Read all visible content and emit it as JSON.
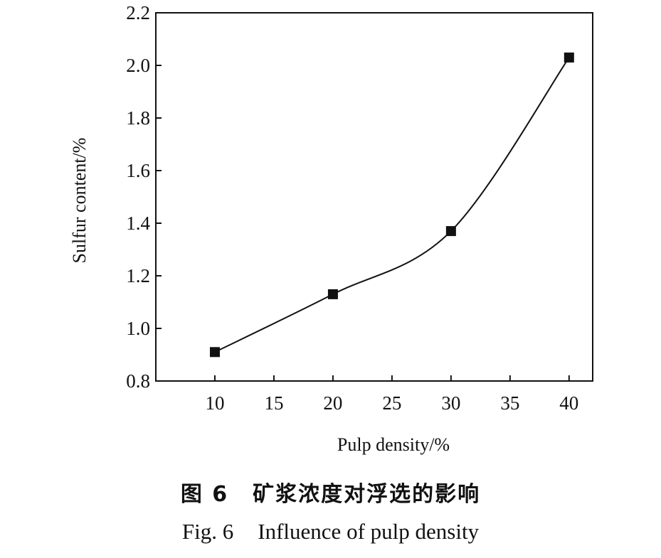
{
  "chart_data": {
    "type": "line",
    "xlabel": "Pulp density/%",
    "ylabel": "Sulfur content/%",
    "xlim": [
      5,
      42
    ],
    "ylim": [
      0.8,
      2.2
    ],
    "xticks": [
      "10",
      "15",
      "20",
      "25",
      "30",
      "35",
      "40"
    ],
    "yticks": [
      "0.8",
      "1.0",
      "1.2",
      "1.4",
      "1.6",
      "1.8",
      "2.0",
      "2.2"
    ],
    "grid": false,
    "series": [
      {
        "x": [
          10,
          20,
          30,
          40
        ],
        "values": [
          0.91,
          1.13,
          1.37,
          2.03
        ]
      }
    ]
  },
  "caption": {
    "cn_number": "图 6",
    "cn_text": "矿浆浓度对浮选的影响",
    "en_number": "Fig. 6",
    "en_text": "Influence of pulp density"
  },
  "colors": {
    "line": "#111111",
    "marker": "#111111",
    "background": "#ffffff"
  }
}
